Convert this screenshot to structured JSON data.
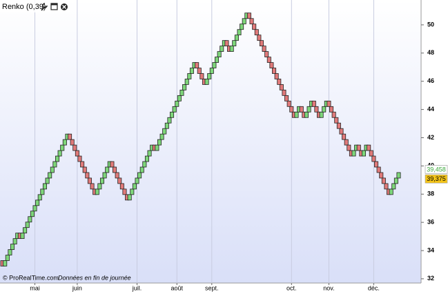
{
  "chart_data": {
    "type": "renko",
    "title": "Renko (0,39)",
    "brick_size": 0.39,
    "up_color": "#7ed67a",
    "down_color": "#e07a7a",
    "values": [
      32.9,
      33.29,
      33.68,
      34.07,
      34.46,
      34.85,
      35.24,
      34.85,
      35.24,
      35.63,
      36.02,
      36.41,
      36.8,
      37.19,
      37.58,
      37.97,
      38.36,
      38.75,
      39.14,
      39.53,
      39.92,
      40.31,
      40.7,
      41.09,
      41.48,
      41.87,
      42.26,
      41.87,
      41.48,
      41.09,
      40.7,
      40.31,
      39.92,
      39.53,
      39.14,
      38.75,
      38.36,
      37.97,
      38.36,
      38.75,
      39.14,
      39.53,
      39.92,
      40.31,
      39.92,
      39.53,
      39.14,
      38.75,
      38.36,
      37.97,
      37.58,
      37.97,
      38.36,
      38.75,
      39.14,
      39.53,
      39.92,
      40.31,
      40.7,
      41.09,
      41.48,
      41.09,
      41.48,
      41.87,
      42.26,
      42.65,
      43.04,
      43.43,
      43.82,
      44.21,
      44.6,
      44.99,
      45.38,
      45.77,
      46.16,
      46.55,
      46.94,
      47.33,
      46.94,
      46.55,
      46.16,
      45.77,
      46.16,
      46.55,
      46.94,
      47.33,
      47.72,
      48.11,
      48.5,
      48.89,
      48.5,
      48.11,
      48.5,
      48.89,
      49.28,
      49.67,
      50.06,
      50.45,
      50.84,
      50.45,
      50.06,
      49.67,
      49.28,
      48.89,
      48.5,
      48.11,
      47.72,
      47.33,
      46.94,
      46.55,
      46.16,
      45.77,
      45.38,
      44.99,
      44.6,
      44.21,
      43.82,
      43.43,
      43.82,
      44.21,
      43.82,
      43.43,
      43.82,
      44.21,
      44.6,
      44.21,
      43.82,
      43.43,
      43.82,
      44.21,
      44.6,
      44.21,
      43.82,
      43.43,
      43.04,
      42.65,
      42.26,
      41.87,
      41.48,
      41.09,
      40.7,
      41.09,
      41.48,
      41.09,
      40.7,
      41.09,
      41.48,
      41.09,
      40.7,
      40.31,
      39.92,
      39.53,
      39.14,
      38.75,
      38.36,
      37.97,
      38.36,
      38.75,
      39.14,
      39.53
    ],
    "xlim": [
      -1,
      168
    ],
    "xticks": [
      {
        "value": 13,
        "label": "mai"
      },
      {
        "value": 30,
        "label": "juin"
      },
      {
        "value": 54,
        "label": "juil."
      },
      {
        "value": 70,
        "label": "août"
      },
      {
        "value": 84,
        "label": "sept."
      },
      {
        "value": 116,
        "label": "oct."
      },
      {
        "value": 131,
        "label": "nov."
      },
      {
        "value": 149,
        "label": "déc."
      }
    ],
    "ylim": [
      31.7,
      51.76
    ],
    "yticks": [
      32,
      34,
      36,
      38,
      40,
      42,
      44,
      46,
      48,
      50
    ],
    "grid": "x",
    "price_labels": [
      {
        "value": 39.458,
        "label": "39,458",
        "color": "#ffffff",
        "text_color": "#3aa83a"
      },
      {
        "value": 39.375,
        "label": "39,375",
        "color": "#f5c518",
        "text_color": "#000000"
      }
    ],
    "footer": {
      "source": "© ProRealTime.com",
      "note": "Données en fin de journée"
    }
  }
}
